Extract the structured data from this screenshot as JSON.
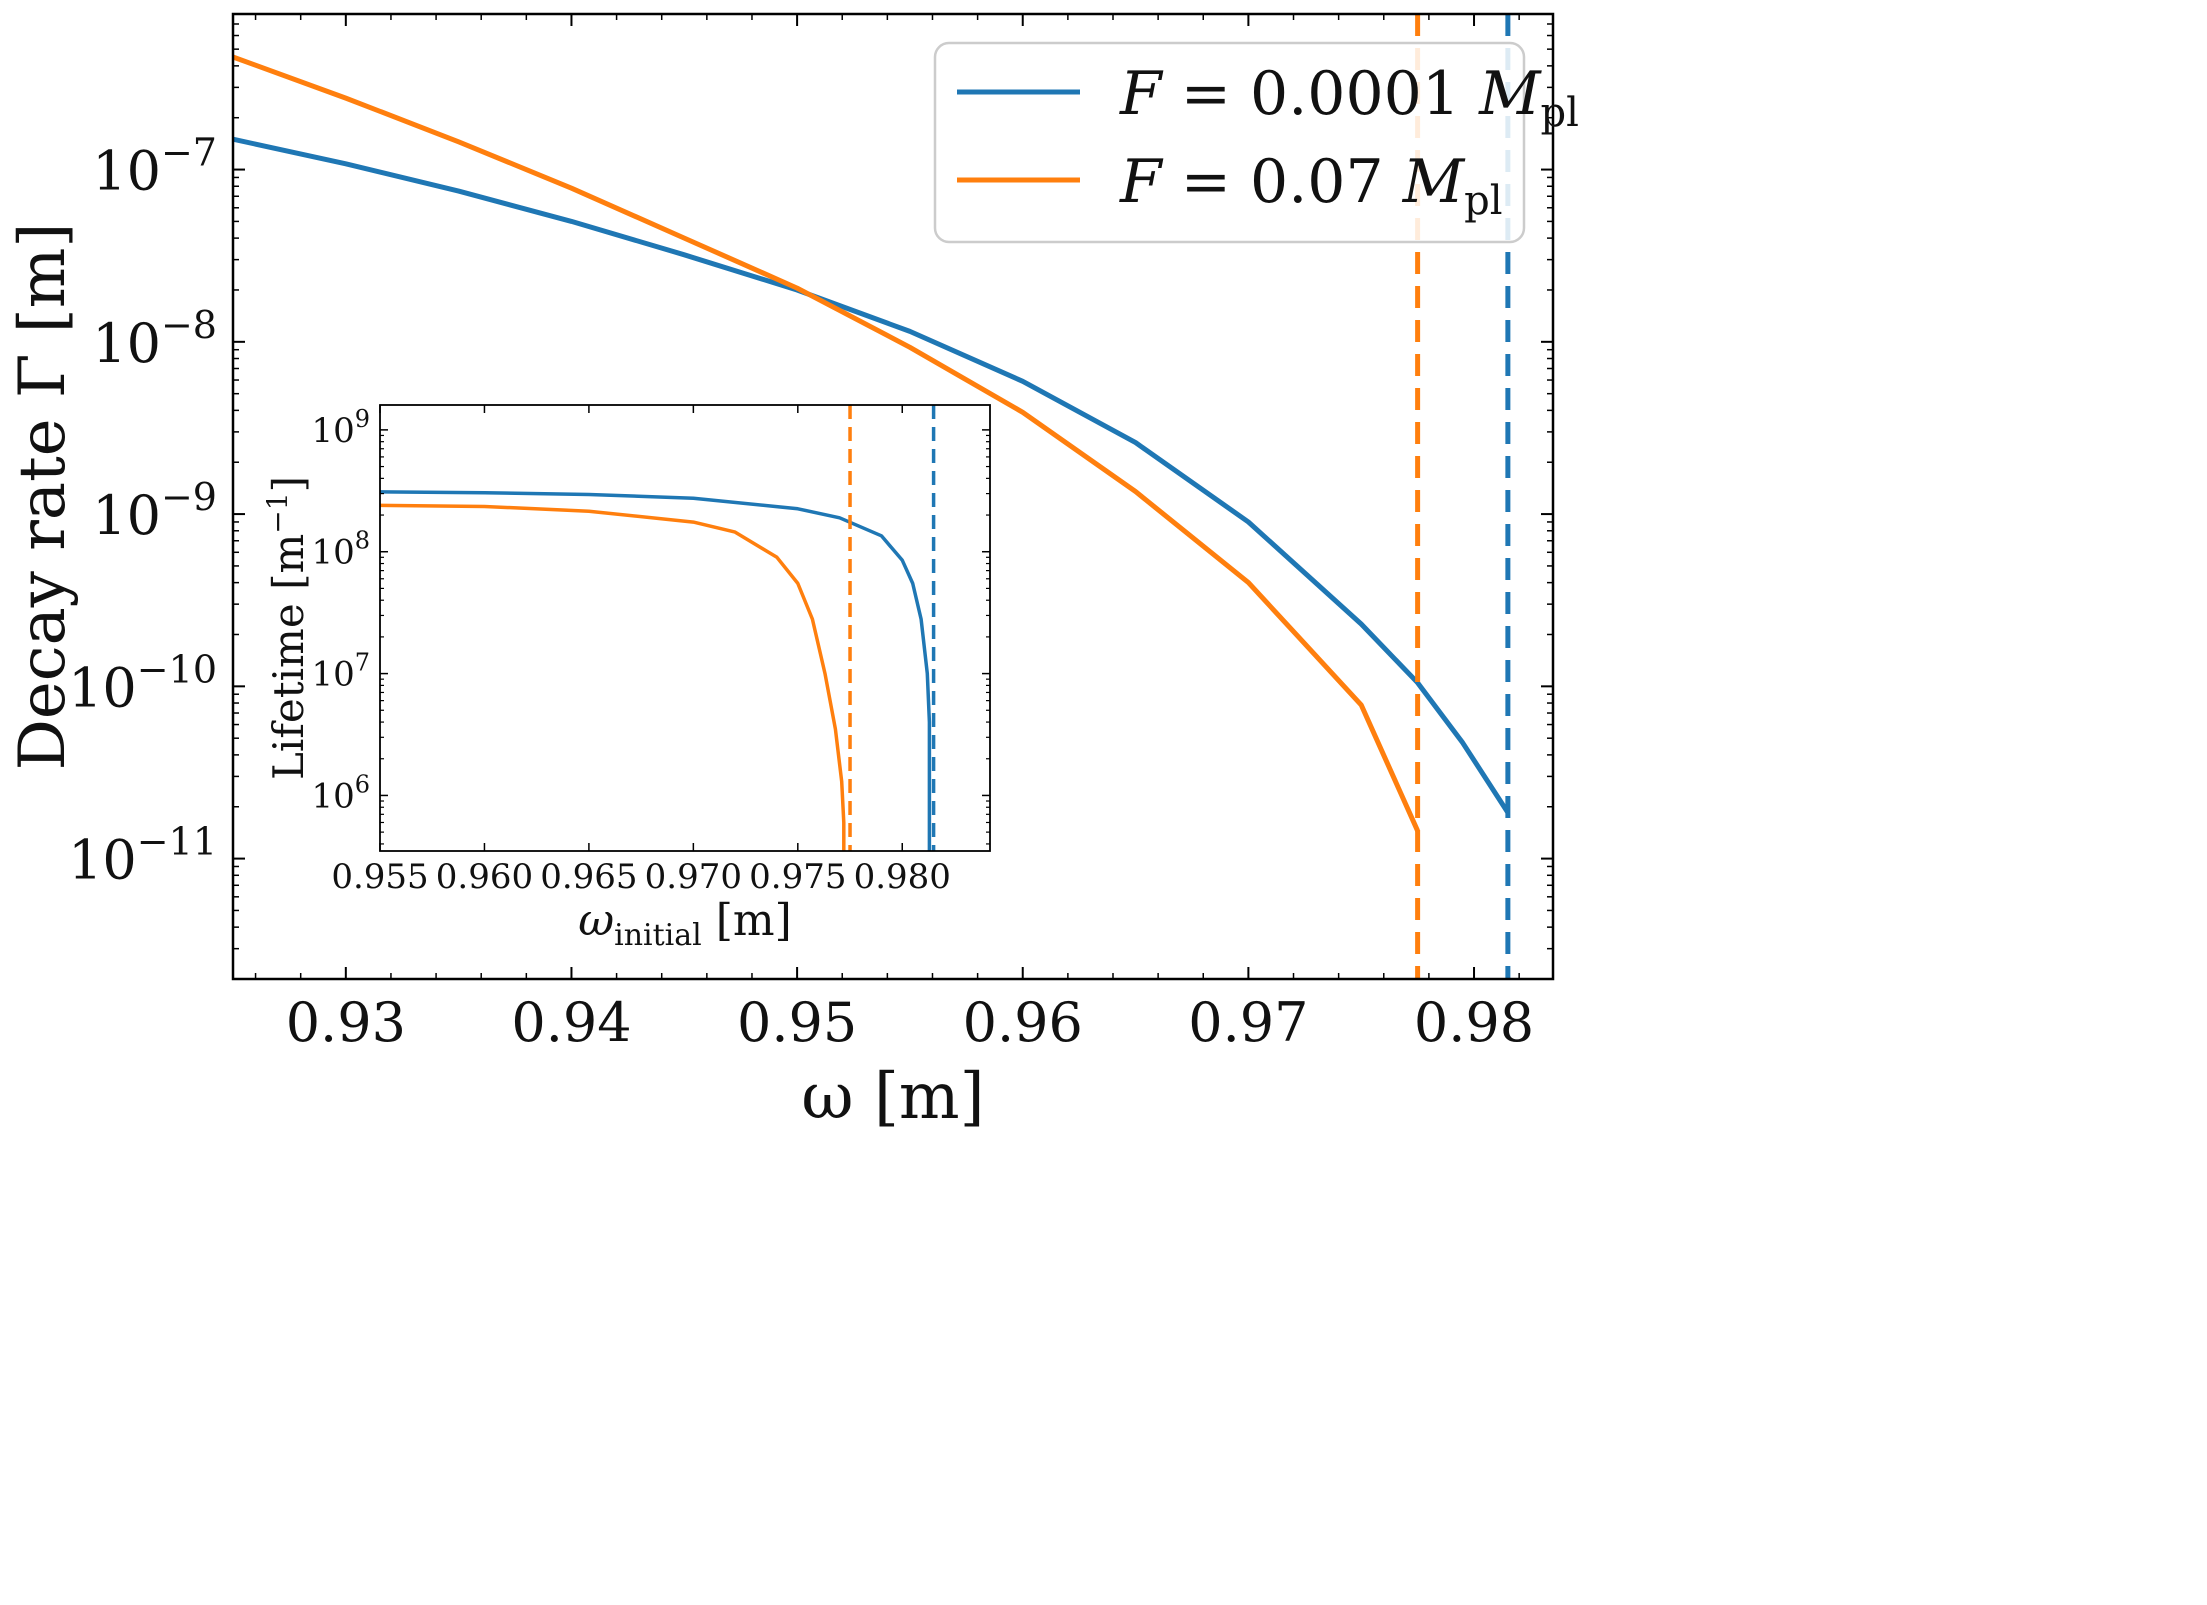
{
  "chart_data": [
    {
      "type": "line",
      "role": "main",
      "title": "",
      "xlabel": "ω [m]",
      "ylabel": "Decay rate Γ [m]",
      "xscale": "linear",
      "yscale": "log",
      "xlim": [
        0.925,
        0.9835
      ],
      "ylim": [
        2e-12,
        8e-07
      ],
      "xticks": [
        0.93,
        0.94,
        0.95,
        0.96,
        0.97,
        0.98
      ],
      "xtick_labels": [
        "0.93",
        "0.94",
        "0.95",
        "0.96",
        "0.97",
        "0.98"
      ],
      "yticks": [
        1e-07,
        1e-08,
        1e-09,
        1e-10,
        1e-11
      ],
      "ytick_labels": [
        {
          "base": "10",
          "exp": "−7"
        },
        {
          "base": "10",
          "exp": "−8"
        },
        {
          "base": "10",
          "exp": "−9"
        },
        {
          "base": "10",
          "exp": "−10"
        },
        {
          "base": "10",
          "exp": "−11"
        }
      ],
      "legend": {
        "placement": "upper-right"
      },
      "series": [
        {
          "name": "F = 0.0001 M_pl",
          "label_var": "F",
          "label_eq": " = 0.0001 ",
          "label_mass": "M",
          "label_sub": "pl",
          "color": "#1f77b4",
          "x": [
            0.925,
            0.93,
            0.935,
            0.94,
            0.945,
            0.95,
            0.955,
            0.96,
            0.965,
            0.97,
            0.975,
            0.9775,
            0.9795,
            0.9815
          ],
          "y": [
            1.5e-07,
            1.08e-07,
            7.5e-08,
            5e-08,
            3.2e-08,
            2e-08,
            1.15e-08,
            5.9e-09,
            2.6e-09,
            9e-10,
            2.3e-10,
            1.05e-10,
            4.7e-11,
            1.85e-11
          ],
          "cutoff": 0.9815
        },
        {
          "name": "F = 0.07 M_pl",
          "label_var": "F",
          "label_eq": " = 0.07 ",
          "label_mass": "M",
          "label_sub": "pl",
          "color": "#ff7f0e",
          "x": [
            0.925,
            0.93,
            0.935,
            0.94,
            0.945,
            0.95,
            0.955,
            0.96,
            0.965,
            0.97,
            0.975,
            0.9775
          ],
          "y": [
            4.5e-07,
            2.6e-07,
            1.45e-07,
            7.8e-08,
            4e-08,
            2.05e-08,
            9.3e-09,
            3.9e-09,
            1.35e-09,
            4e-10,
            7.8e-11,
            1.45e-11
          ],
          "cutoff": 0.9775
        }
      ]
    },
    {
      "type": "line",
      "role": "inset",
      "title": "",
      "xlabel_var": "ω",
      "xlabel_sub": "initial",
      "xlabel_unit": " [m]",
      "ylabel": "Lifetime [m",
      "ylabel_exp": "−1",
      "ylabel_close": "]",
      "xscale": "linear",
      "yscale": "log",
      "xlim": [
        0.955,
        0.9842
      ],
      "ylim": [
        350000.0,
        1600000000.0
      ],
      "xticks": [
        0.955,
        0.96,
        0.965,
        0.97,
        0.975,
        0.98
      ],
      "xtick_labels": [
        "0.955",
        "0.960",
        "0.965",
        "0.970",
        "0.975",
        "0.980"
      ],
      "yticks": [
        1000000000.0,
        100000000.0,
        10000000.0,
        1000000.0
      ],
      "ytick_labels": [
        {
          "base": "10",
          "exp": "9"
        },
        {
          "base": "10",
          "exp": "8"
        },
        {
          "base": "10",
          "exp": "7"
        },
        {
          "base": "10",
          "exp": "6"
        }
      ],
      "series": [
        {
          "name": "F = 0.0001 M_pl",
          "color": "#1f77b4",
          "x": [
            0.955,
            0.96,
            0.965,
            0.97,
            0.975,
            0.977,
            0.979,
            0.98,
            0.9805,
            0.9809,
            0.9812,
            0.9813,
            0.9813
          ],
          "y": [
            310000000.0,
            305000000.0,
            295000000.0,
            275000000.0,
            225000000.0,
            190000000.0,
            135000000.0,
            85000000.0,
            55000000.0,
            28000000.0,
            10000000.0,
            4000000.0,
            350000.0
          ],
          "cutoff": 0.9815
        },
        {
          "name": "F = 0.07 M_pl",
          "color": "#ff7f0e",
          "x": [
            0.955,
            0.96,
            0.965,
            0.97,
            0.972,
            0.974,
            0.975,
            0.9757,
            0.9763,
            0.9768,
            0.9771,
            0.9772,
            0.9772
          ],
          "y": [
            240000000.0,
            235000000.0,
            215000000.0,
            175000000.0,
            145000000.0,
            90000000.0,
            55000000.0,
            28000000.0,
            10000000.0,
            3500000.0,
            1300000.0,
            600000.0,
            350000.0
          ],
          "cutoff": 0.9775
        }
      ]
    }
  ]
}
